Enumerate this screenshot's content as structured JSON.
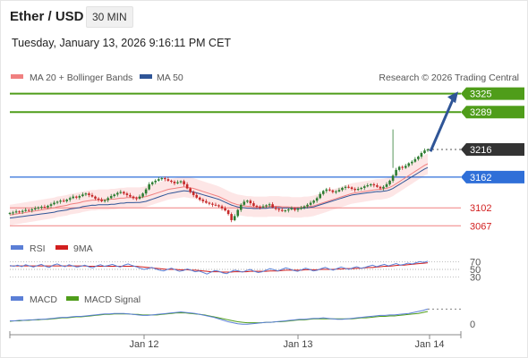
{
  "header": {
    "title": "Ether / USD",
    "timeframe": "30 MIN",
    "datetime": "Tuesday, January 13, 2026 9:16:11 PM CET"
  },
  "legend": {
    "ma20_bb": "MA 20 + Bollinger Bands",
    "ma50": "MA 50",
    "credit": "Research © 2026 Trading Central",
    "rsi": "RSI",
    "ma9": "9MA",
    "macd": "MACD",
    "macd_signal": "MACD Signal"
  },
  "colors": {
    "candle_up": "#2e7d32",
    "candle_down": "#c62828",
    "ma20": "#f08080",
    "ma50": "#2f5597",
    "bb_fill": "#fde2e2",
    "resistance": "#4f9d1a",
    "pivot": "#2f6fd8",
    "support": "#f08080",
    "current": "#333333",
    "arrow": "#2f5597",
    "rsi": "#5b7fd6",
    "rsi_ma": "#d21f1f",
    "macd": "#5b7fd6",
    "macd_signal": "#4f9d1a"
  },
  "chart_data": [
    {
      "type": "candlestick",
      "x_labels": [
        "Jan 12",
        "Jan 13",
        "Jan 14"
      ],
      "ylim": [
        3050,
        3340
      ],
      "levels": [
        {
          "value": 3325,
          "label": "3325",
          "kind": "resistance"
        },
        {
          "value": 3289,
          "label": "3289",
          "kind": "resistance"
        },
        {
          "value": 3216,
          "label": "3216",
          "kind": "current"
        },
        {
          "value": 3162,
          "label": "3162",
          "kind": "pivot"
        },
        {
          "value": 3102,
          "label": "3102",
          "kind": "support"
        },
        {
          "value": 3067,
          "label": "3067",
          "kind": "support"
        }
      ],
      "close_series": [
        3092,
        3093,
        3095,
        3094,
        3096,
        3098,
        3097,
        3099,
        3101,
        3103,
        3104,
        3103,
        3106,
        3109,
        3112,
        3114,
        3116,
        3115,
        3118,
        3121,
        3124,
        3122,
        3125,
        3128,
        3130,
        3127,
        3124,
        3120,
        3118,
        3115,
        3117,
        3121,
        3125,
        3128,
        3131,
        3133,
        3130,
        3127,
        3124,
        3121,
        3120,
        3124,
        3130,
        3138,
        3148,
        3152,
        3155,
        3158,
        3160,
        3158,
        3155,
        3153,
        3150,
        3152,
        3154,
        3148,
        3140,
        3133,
        3127,
        3122,
        3118,
        3115,
        3112,
        3110,
        3108,
        3107,
        3105,
        3101,
        3097,
        3090,
        3078,
        3086,
        3098,
        3108,
        3114,
        3116,
        3111,
        3106,
        3104,
        3103,
        3105,
        3107,
        3109,
        3103,
        3100,
        3098,
        3096,
        3097,
        3099,
        3101,
        3098,
        3100,
        3102,
        3105,
        3108,
        3112,
        3116,
        3121,
        3129,
        3135,
        3138,
        3136,
        3133,
        3134,
        3137,
        3141,
        3143,
        3142,
        3139,
        3137,
        3139,
        3141,
        3144,
        3146,
        3148,
        3146,
        3143,
        3140,
        3143,
        3148,
        3155,
        3165,
        3176,
        3182,
        3180,
        3184,
        3189,
        3192,
        3197,
        3202,
        3209,
        3214,
        3216
      ],
      "ma20_series": [
        3088,
        3089,
        3090,
        3091,
        3092,
        3093,
        3094,
        3095,
        3096,
        3097,
        3098,
        3099,
        3100,
        3101,
        3102,
        3104,
        3105,
        3106,
        3107,
        3109,
        3110,
        3111,
        3112,
        3114,
        3115,
        3116,
        3117,
        3117,
        3118,
        3118,
        3118,
        3118,
        3119,
        3119,
        3120,
        3121,
        3121,
        3122,
        3122,
        3122,
        3122,
        3122,
        3123,
        3124,
        3126,
        3128,
        3130,
        3132,
        3134,
        3136,
        3138,
        3139,
        3140,
        3141,
        3142,
        3143,
        3142,
        3141,
        3140,
        3138,
        3136,
        3134,
        3132,
        3130,
        3128,
        3126,
        3124,
        3121,
        3118,
        3115,
        3112,
        3110,
        3108,
        3107,
        3106,
        3105,
        3105,
        3104,
        3104,
        3104,
        3104,
        3104,
        3105,
        3105,
        3105,
        3105,
        3104,
        3104,
        3104,
        3103,
        3103,
        3103,
        3103,
        3104,
        3104,
        3105,
        3106,
        3108,
        3110,
        3112,
        3114,
        3116,
        3118,
        3120,
        3122,
        3124,
        3126,
        3128,
        3130,
        3131,
        3132,
        3133,
        3134,
        3135,
        3136,
        3137,
        3138,
        3138,
        3139,
        3140,
        3142,
        3145,
        3149,
        3153,
        3157,
        3161,
        3165,
        3169,
        3173,
        3177,
        3181,
        3185,
        3188
      ],
      "bb_width": 20,
      "forecast_arrow": {
        "from": 3212,
        "to": 3329
      }
    },
    {
      "type": "line",
      "name": "RSI",
      "levels": [
        70,
        50,
        30
      ],
      "rsi": [
        60,
        58,
        61,
        57,
        62,
        59,
        56,
        60,
        63,
        58,
        55,
        61,
        64,
        60,
        57,
        62,
        59,
        56,
        58,
        61,
        57,
        54,
        59,
        62,
        58,
        60,
        63,
        59,
        56,
        61,
        64,
        60,
        57,
        53,
        50,
        52,
        55,
        51,
        48,
        46,
        50,
        53,
        49,
        45,
        47,
        51,
        48,
        44,
        46,
        42,
        38,
        43,
        47,
        45,
        41,
        39,
        44,
        48,
        46,
        43,
        47,
        50,
        45,
        42,
        44,
        48,
        52,
        49,
        46,
        50,
        54,
        51,
        47,
        45,
        49,
        53,
        50,
        46,
        48,
        52,
        55,
        51,
        48,
        52,
        56,
        53,
        50,
        54,
        57,
        53,
        55,
        58,
        61,
        57,
        60,
        63,
        59,
        62,
        65,
        61,
        63,
        66,
        64,
        67,
        70,
        68,
        71
      ],
      "rsi_ma": [
        59,
        59,
        59,
        59,
        59,
        59,
        59,
        59,
        59,
        59,
        59,
        59,
        59,
        59,
        59,
        59,
        59,
        59,
        59,
        59,
        58,
        58,
        58,
        58,
        58,
        58,
        58,
        58,
        58,
        58,
        58,
        58,
        58,
        57,
        56,
        55,
        54,
        53,
        52,
        51,
        50,
        50,
        50,
        49,
        49,
        49,
        48,
        48,
        47,
        46,
        45,
        44,
        44,
        44,
        43,
        43,
        43,
        44,
        44,
        44,
        44,
        45,
        45,
        45,
        45,
        45,
        46,
        46,
        46,
        47,
        48,
        48,
        48,
        48,
        48,
        49,
        49,
        49,
        49,
        50,
        50,
        50,
        50,
        51,
        51,
        52,
        52,
        52,
        53,
        53,
        54,
        55,
        55,
        56,
        57,
        58,
        58,
        59,
        60,
        61,
        61,
        62,
        63,
        64,
        65,
        66,
        67
      ]
    },
    {
      "type": "line",
      "name": "MACD",
      "levels": [
        0
      ],
      "macd": [
        1,
        1,
        2,
        2,
        3,
        3,
        4,
        4,
        5,
        6,
        7,
        8,
        8,
        9,
        10,
        10,
        11,
        12,
        13,
        14,
        15,
        15,
        16,
        16,
        16,
        15,
        14,
        13,
        12,
        12,
        13,
        14,
        15,
        16,
        17,
        18,
        19,
        18,
        17,
        16,
        14,
        12,
        10,
        8,
        5,
        2,
        -1,
        -3,
        -5,
        -6,
        -6,
        -5,
        -4,
        -3,
        -2,
        -2,
        -1,
        0,
        1,
        2,
        3,
        4,
        4,
        5,
        6,
        6,
        7,
        6,
        5,
        4,
        4,
        5,
        6,
        7,
        8,
        9,
        10,
        11,
        12,
        12,
        13,
        13,
        14,
        15,
        16,
        18,
        20,
        22,
        25
      ],
      "macd_signal": [
        0,
        1,
        1,
        2,
        2,
        3,
        3,
        4,
        4,
        5,
        6,
        7,
        7,
        8,
        9,
        9,
        10,
        11,
        12,
        13,
        14,
        14,
        15,
        15,
        15,
        15,
        14,
        14,
        13,
        13,
        13,
        13,
        14,
        15,
        16,
        17,
        17,
        17,
        16,
        15,
        14,
        13,
        11,
        9,
        7,
        5,
        3,
        1,
        -1,
        -2,
        -3,
        -3,
        -3,
        -3,
        -2,
        -2,
        -1,
        -1,
        0,
        1,
        2,
        3,
        3,
        4,
        5,
        5,
        5,
        5,
        5,
        5,
        5,
        5,
        5,
        6,
        7,
        7,
        8,
        9,
        10,
        10,
        11,
        11,
        12,
        13,
        14,
        15,
        16,
        18,
        20
      ]
    }
  ]
}
